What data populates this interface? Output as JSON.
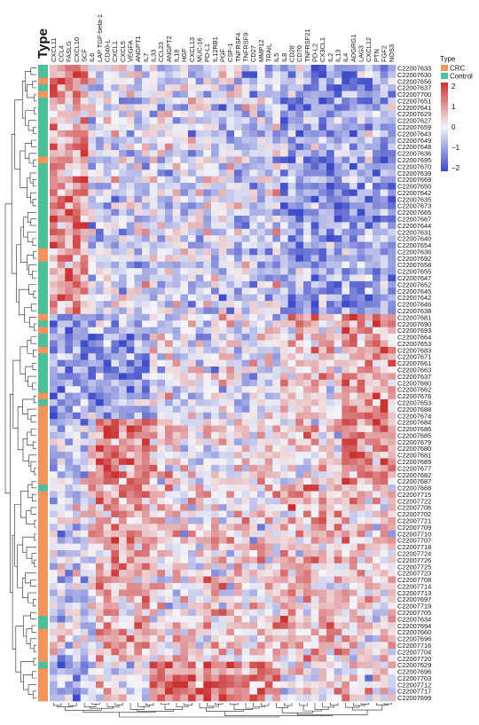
{
  "chart_data": {
    "type": "heatmap",
    "type_header": "Type",
    "legend": {
      "title": "Type",
      "entries": [
        {
          "label": "CRC",
          "color": "#F4945D"
        },
        {
          "label": "Control",
          "color": "#4FBE9A"
        }
      ],
      "colorbar_ticks": [
        "2",
        "1",
        "0",
        "−1",
        "−2"
      ],
      "colorbar_range": [
        -2,
        2
      ],
      "colors": {
        "low": "#3E4BC8",
        "mid": "#F4F4F8",
        "high": "#CB3232"
      }
    },
    "columns": [
      "CXCL11",
      "CCL4",
      "FASLG",
      "CXCL10",
      "SCF",
      "IL6",
      "LAP TGF-beta-1",
      "CD40-L",
      "CXCL1",
      "CXCL5",
      "VEGFA",
      "ANGPT1",
      "IL7",
      "IL33",
      "CCL23",
      "ANGPT2",
      "IL18",
      "HGF",
      "CXCL13",
      "MUC-16",
      "PD-L1",
      "IL12RB1",
      "PGF",
      "CSF-1",
      "TNFRSF4",
      "TNFRSF9",
      "CD27",
      "MMP12",
      "TRAIL",
      "IL5",
      "IL8",
      "CD28",
      "CD70",
      "TNFRSF21",
      "PD-L2",
      "CX3CL1",
      "IL2",
      "IL13",
      "IL4",
      "ADGRG1",
      "LAG3",
      "CXCL12",
      "PTN",
      "FGF2",
      "NOS3"
    ],
    "rows": [
      "C22007633",
      "C22007630",
      "C22007656",
      "C22007637",
      "C22007700",
      "C22007651",
      "C22007641",
      "C22007629",
      "C22007627",
      "C22007659",
      "C22007643",
      "C22007649",
      "C22007648",
      "C22007636",
      "C22007695",
      "C22007670",
      "C22007639",
      "C22007669",
      "C22007650",
      "C22007642",
      "C22007635",
      "C22007673",
      "C22007665",
      "C22007667",
      "C22007644",
      "C22007631",
      "C22007640",
      "C22007654",
      "C22007636",
      "C22007692",
      "C22007658",
      "C22007655",
      "C22007647",
      "C22007652",
      "C22007645",
      "C22007642",
      "C22007646",
      "C22007638",
      "C22007681",
      "C22007690",
      "C22007693",
      "C22007664",
      "C22007653",
      "C22007683",
      "C22007671",
      "C22007661",
      "C22007663",
      "C22007637",
      "C22007660",
      "C22007662",
      "C22007676",
      "C22007653",
      "C22007688",
      "C22007674",
      "C22007684",
      "C22007686",
      "C22007685",
      "C22007679",
      "C22007680",
      "C22007681",
      "C22007689",
      "C22007677",
      "C22007682",
      "C22007687",
      "C22007668",
      "C22007715",
      "C22007722",
      "C22007706",
      "C22007702",
      "C22007721",
      "C22007709",
      "C22007710",
      "C22007707",
      "C22007718",
      "C22007724",
      "C22007726",
      "C22007725",
      "C22007723",
      "C22007708",
      "C22007714",
      "C22007713",
      "C22007697",
      "C22007719",
      "C22007705",
      "C22007634",
      "C22007694",
      "C22007660",
      "C22007696",
      "C22007716",
      "C22007704",
      "C22007720",
      "C22007629",
      "C22007696",
      "C22007703",
      "C22007712",
      "C22007717",
      "C22007699"
    ],
    "row_types": [
      "Control",
      "Control",
      "CRC",
      "Control",
      "CRC",
      "Control",
      "Control",
      "Control",
      "Control",
      "Control",
      "Control",
      "Control",
      "Control",
      "Control",
      "CRC",
      "Control",
      "Control",
      "Control",
      "Control",
      "Control",
      "Control",
      "Control",
      "Control",
      "Control",
      "Control",
      "Control",
      "Control",
      "Control",
      "CRC",
      "CRC",
      "Control",
      "Control",
      "Control",
      "Control",
      "Control",
      "Control",
      "Control",
      "Control",
      "CRC",
      "Control",
      "CRC",
      "Control",
      "Control",
      "CRC",
      "Control",
      "Control",
      "Control",
      "Control",
      "Control",
      "Control",
      "CRC",
      "Control",
      "CRC",
      "CRC",
      "CRC",
      "CRC",
      "CRC",
      "CRC",
      "CRC",
      "CRC",
      "CRC",
      "CRC",
      "CRC",
      "CRC",
      "Control",
      "CRC",
      "CRC",
      "CRC",
      "CRC",
      "CRC",
      "CRC",
      "CRC",
      "CRC",
      "CRC",
      "CRC",
      "CRC",
      "CRC",
      "CRC",
      "CRC",
      "CRC",
      "CRC",
      "CRC",
      "CRC",
      "CRC",
      "Control",
      "Control",
      "CRC",
      "CRC",
      "CRC",
      "CRC",
      "CRC",
      "Control",
      "CRC",
      "CRC",
      "CRC",
      "CRC",
      "CRC"
    ]
  }
}
